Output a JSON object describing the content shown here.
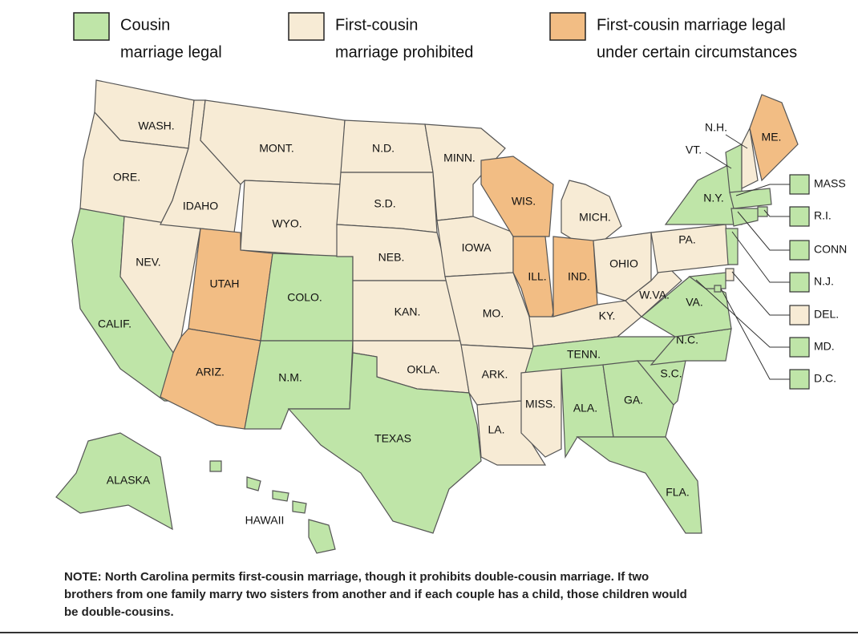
{
  "legend": [
    {
      "lines": [
        "Cousin",
        "marriage legal"
      ],
      "color": "#bfe5a8"
    },
    {
      "lines": [
        "First-cousin",
        "marriage prohibited"
      ],
      "color": "#f7ebd5"
    },
    {
      "lines": [
        "First-cousin marriage legal",
        "under certain circumstances"
      ],
      "color": "#f2bd84"
    }
  ],
  "states": [
    {
      "label": "WASH.",
      "color": "#f7ebd5"
    },
    {
      "label": "ORE.",
      "color": "#f7ebd5"
    },
    {
      "label": "CALIF.",
      "color": "#bfe5a8"
    },
    {
      "label": "NEV.",
      "color": "#f7ebd5"
    },
    {
      "label": "IDAHO",
      "color": "#f7ebd5"
    },
    {
      "label": "MONT.",
      "color": "#f7ebd5"
    },
    {
      "label": "WYO.",
      "color": "#f7ebd5"
    },
    {
      "label": "UTAH",
      "color": "#f2bd84"
    },
    {
      "label": "ARIZ.",
      "color": "#f2bd84"
    },
    {
      "label": "COLO.",
      "color": "#bfe5a8"
    },
    {
      "label": "N.M.",
      "color": "#bfe5a8"
    },
    {
      "label": "N.D.",
      "color": "#f7ebd5"
    },
    {
      "label": "S.D.",
      "color": "#f7ebd5"
    },
    {
      "label": "NEB.",
      "color": "#f7ebd5"
    },
    {
      "label": "KAN.",
      "color": "#f7ebd5"
    },
    {
      "label": "OKLA.",
      "color": "#f7ebd5"
    },
    {
      "label": "TEXAS",
      "color": "#bfe5a8"
    },
    {
      "label": "MINN.",
      "color": "#f7ebd5"
    },
    {
      "label": "IOWA",
      "color": "#f7ebd5"
    },
    {
      "label": "MO.",
      "color": "#f7ebd5"
    },
    {
      "label": "ARK.",
      "color": "#f7ebd5"
    },
    {
      "label": "LA.",
      "color": "#f7ebd5"
    },
    {
      "label": "WIS.",
      "color": "#f2bd84"
    },
    {
      "label": "ILL.",
      "color": "#f2bd84"
    },
    {
      "label": "MICH.",
      "color": "#f7ebd5"
    },
    {
      "label": "IND.",
      "color": "#f2bd84"
    },
    {
      "label": "OHIO",
      "color": "#f7ebd5"
    },
    {
      "label": "KY.",
      "color": "#f7ebd5"
    },
    {
      "label": "TENN.",
      "color": "#bfe5a8"
    },
    {
      "label": "MISS.",
      "color": "#f7ebd5"
    },
    {
      "label": "ALA.",
      "color": "#bfe5a8"
    },
    {
      "label": "GA.",
      "color": "#bfe5a8"
    },
    {
      "label": "FLA.",
      "color": "#bfe5a8"
    },
    {
      "label": "S.C.",
      "color": "#bfe5a8"
    },
    {
      "label": "N.C.",
      "color": "#bfe5a8"
    },
    {
      "label": "VA.",
      "color": "#bfe5a8"
    },
    {
      "label": "W.VA.",
      "color": "#f7ebd5"
    },
    {
      "label": "PA.",
      "color": "#f7ebd5"
    },
    {
      "label": "N.Y.",
      "color": "#bfe5a8"
    },
    {
      "label": "VT.",
      "color": "#bfe5a8"
    },
    {
      "label": "N.H.",
      "color": "#f7ebd5"
    },
    {
      "label": "ME.",
      "color": "#f2bd84"
    },
    {
      "label": "MASS",
      "color": "#bfe5a8"
    },
    {
      "label": "R.I.",
      "color": "#bfe5a8"
    },
    {
      "label": "CONN",
      "color": "#bfe5a8"
    },
    {
      "label": "N.J.",
      "color": "#bfe5a8"
    },
    {
      "label": "DEL.",
      "color": "#f7ebd5"
    },
    {
      "label": "MD.",
      "color": "#bfe5a8"
    },
    {
      "label": "D.C.",
      "color": "#bfe5a8"
    },
    {
      "label": "ALASKA",
      "color": "#bfe5a8"
    },
    {
      "label": "HAWAII",
      "color": "#bfe5a8"
    }
  ],
  "note": {
    "lines": [
      "NOTE: North Carolina permits first-cousin marriage, though it prohibits double-cousin marriage. If two",
      "brothers from one family marry two sisters from another and if each couple has a child, those children would",
      "be double-cousins."
    ]
  }
}
